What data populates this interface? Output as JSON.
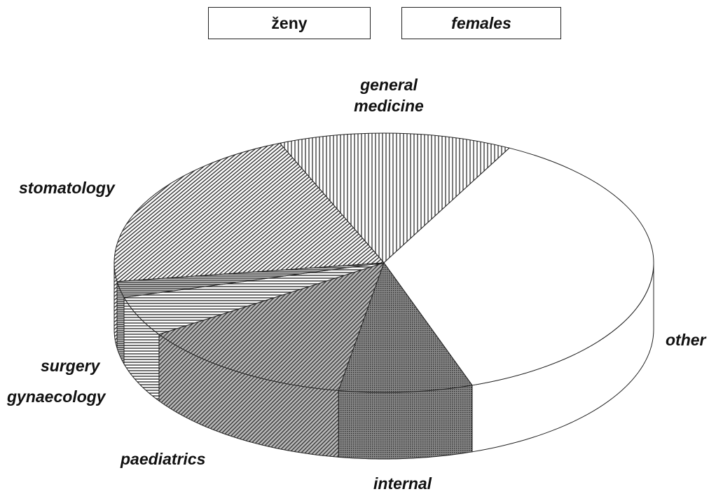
{
  "titles": [
    "ženy",
    "females"
  ],
  "chart_data": {
    "type": "pie3d",
    "categories": [
      "general medicine",
      "other",
      "internal",
      "paediatrics",
      "gynaecology",
      "surgery",
      "stomatology"
    ],
    "values": [
      14,
      37,
      8,
      13,
      5,
      2,
      21
    ]
  }
}
